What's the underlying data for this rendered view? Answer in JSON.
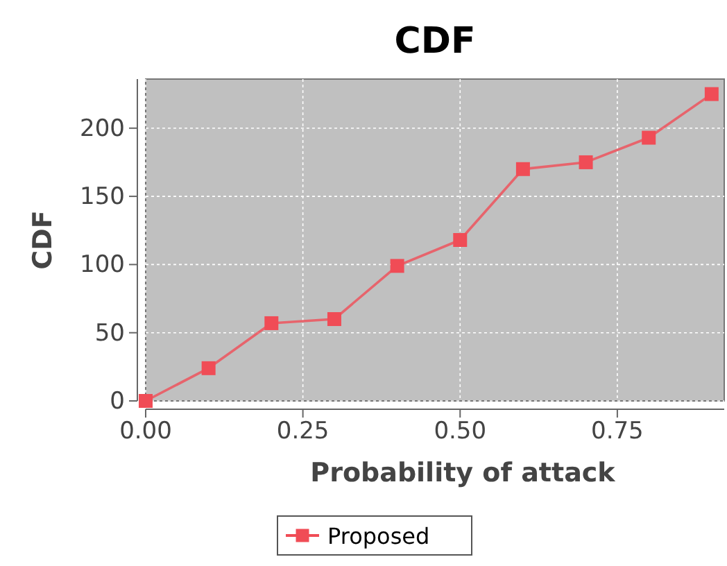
{
  "chart_data": {
    "type": "line",
    "title": "CDF",
    "xlabel": "Probability of attack",
    "ylabel": "CDF",
    "x": [
      0,
      0.1,
      0.2,
      0.3,
      0.4,
      0.5,
      0.6,
      0.7,
      0.8,
      0.9
    ],
    "series": [
      {
        "name": "Proposed",
        "color": "#f04c56",
        "values": [
          0,
          24,
          57,
          60,
          99,
          118,
          170,
          175,
          193,
          225
        ]
      }
    ],
    "xlim": [
      0,
      0.92
    ],
    "xticks": [
      {
        "value": 0,
        "label": "0.00"
      },
      {
        "value": 0.25,
        "label": "0.25"
      },
      {
        "value": 0.5,
        "label": "0.50"
      },
      {
        "value": 0.75,
        "label": "0.75"
      }
    ],
    "ylim": [
      0,
      236
    ],
    "yticks": [
      0,
      50,
      100,
      150,
      200
    ],
    "grid": true,
    "legend": "bottom",
    "marker": "square",
    "line_style": "solid"
  }
}
